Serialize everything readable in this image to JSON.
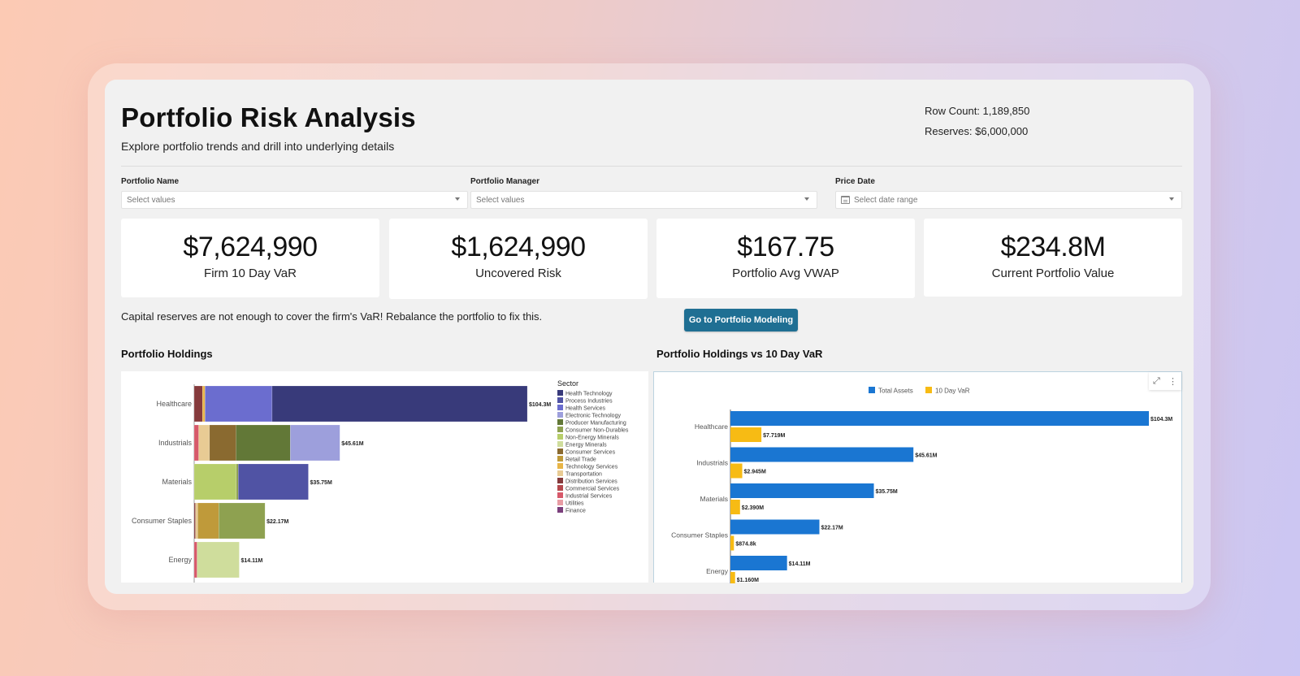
{
  "header": {
    "title": "Portfolio Risk Analysis",
    "subtitle": "Explore portfolio trends and drill into underlying details",
    "row_count": "Row Count: 1,189,850",
    "reserves": "Reserves: $6,000,000"
  },
  "filters": [
    {
      "label": "Portfolio Name",
      "placeholder": "Select values",
      "icon": "chevron-down-icon"
    },
    {
      "label": "Portfolio Manager",
      "placeholder": "Select values",
      "icon": "chevron-down-icon"
    },
    {
      "label": "Price Date",
      "placeholder": "Select date range",
      "icon": "calendar-icon"
    }
  ],
  "kpis": [
    {
      "value": "$7,624,990",
      "label": "Firm 10 Day VaR"
    },
    {
      "value": "$1,624,990",
      "label": "Uncovered Risk"
    },
    {
      "value": "$167.75",
      "label": "Portfolio Avg VWAP"
    },
    {
      "value": "$234.8M",
      "label": "Current Portfolio Value"
    }
  ],
  "message": "Capital reserves are not enough to cover the firm's VaR!  Rebalance the portfolio to fix this.",
  "cta_label": "Go to Portfolio Modeling",
  "sections": {
    "left_title": "Portfolio Holdings",
    "right_title": "Portfolio Holdings vs 10 Day VaR"
  },
  "colors": {
    "accent_button": "#1f6f93",
    "total_assets": "#1a76d2",
    "var_10day": "#f7bb14"
  },
  "chart_data": [
    {
      "type": "bar",
      "orientation": "horizontal",
      "stacked": true,
      "title": "Portfolio Holdings",
      "legend_title": "Sector",
      "legend_position": "right",
      "categories": [
        "Healthcare",
        "Industrials",
        "Materials",
        "Consumer Staples",
        "Energy"
      ],
      "totals": [
        104.3,
        45.61,
        35.75,
        22.17,
        14.11
      ],
      "total_labels": [
        "$104.3M",
        "$45.61M",
        "$35.75M",
        "$22.17M",
        "$14.11M"
      ],
      "legend": [
        {
          "name": "Health Technology",
          "color": "#383a7a"
        },
        {
          "name": "Process Industries",
          "color": "#5053a4"
        },
        {
          "name": "Health Services",
          "color": "#6b6dcf"
        },
        {
          "name": "Electronic Technology",
          "color": "#9d9fdc"
        },
        {
          "name": "Producer Manufacturing",
          "color": "#627837"
        },
        {
          "name": "Consumer Non-Durables",
          "color": "#8ea150"
        },
        {
          "name": "Non-Energy Minerals",
          "color": "#b7ce6a"
        },
        {
          "name": "Energy Minerals",
          "color": "#cfdd9c"
        },
        {
          "name": "Consumer Services",
          "color": "#8a6a30"
        },
        {
          "name": "Retail Trade",
          "color": "#bf9a3a"
        },
        {
          "name": "Technology Services",
          "color": "#e8b547"
        },
        {
          "name": "Transportation",
          "color": "#e8cb94"
        },
        {
          "name": "Distribution Services",
          "color": "#853a3c"
        },
        {
          "name": "Commercial Services",
          "color": "#b4494d"
        },
        {
          "name": "Industrial Services",
          "color": "#d7596a"
        },
        {
          "name": "Utilities",
          "color": "#e89ca4"
        },
        {
          "name": "Finance",
          "color": "#7a3f7c"
        }
      ],
      "series": [
        {
          "category": "Healthcare",
          "segments": [
            {
              "sector": "Distribution Services",
              "value": 2.6
            },
            {
              "sector": "Technology Services",
              "value": 0.8
            },
            {
              "sector": "Health Services",
              "value": 21.0
            },
            {
              "sector": "Health Technology",
              "value": 79.9
            }
          ]
        },
        {
          "category": "Industrials",
          "segments": [
            {
              "sector": "Industrial Services",
              "value": 1.4
            },
            {
              "sector": "Transportation",
              "value": 3.4
            },
            {
              "sector": "Consumer Services",
              "value": 8.3
            },
            {
              "sector": "Producer Manufacturing",
              "value": 17.0
            },
            {
              "sector": "Electronic Technology",
              "value": 15.51
            }
          ]
        },
        {
          "category": "Materials",
          "segments": [
            {
              "sector": "Non-Energy Minerals",
              "value": 13.2
            },
            {
              "sector": "Consumer Non-Durables",
              "value": 0.6
            },
            {
              "sector": "Process Industries",
              "value": 21.95
            }
          ]
        },
        {
          "category": "Consumer Staples",
          "segments": [
            {
              "sector": "Distribution Services",
              "value": 0.4
            },
            {
              "sector": "Transportation",
              "value": 0.7
            },
            {
              "sector": "Retail Trade",
              "value": 6.6
            },
            {
              "sector": "Consumer Non-Durables",
              "value": 14.47
            }
          ]
        },
        {
          "category": "Energy",
          "segments": [
            {
              "sector": "Industrial Services",
              "value": 0.9
            },
            {
              "sector": "Energy Minerals",
              "value": 13.21
            }
          ]
        }
      ],
      "xlim": [
        0,
        104.3
      ]
    },
    {
      "type": "bar",
      "orientation": "horizontal",
      "title": "Portfolio Holdings vs 10 Day VaR",
      "legend_position": "top",
      "categories": [
        "Healthcare",
        "Industrials",
        "Materials",
        "Consumer Staples",
        "Energy"
      ],
      "series": [
        {
          "name": "Total Assets",
          "color": "#1a76d2",
          "values": [
            104.3,
            45.61,
            35.75,
            22.17,
            14.11
          ],
          "labels": [
            "$104.3M",
            "$45.61M",
            "$35.75M",
            "$22.17M",
            "$14.11M"
          ]
        },
        {
          "name": "10 Day VaR",
          "color": "#f7bb14",
          "values": [
            7.719,
            2.945,
            2.39,
            0.8748,
            1.16
          ],
          "labels": [
            "$7.719M",
            "$2.945M",
            "$2.390M",
            "$874.8k",
            "$1.160M"
          ]
        }
      ],
      "xlim": [
        0,
        104.3
      ]
    }
  ]
}
